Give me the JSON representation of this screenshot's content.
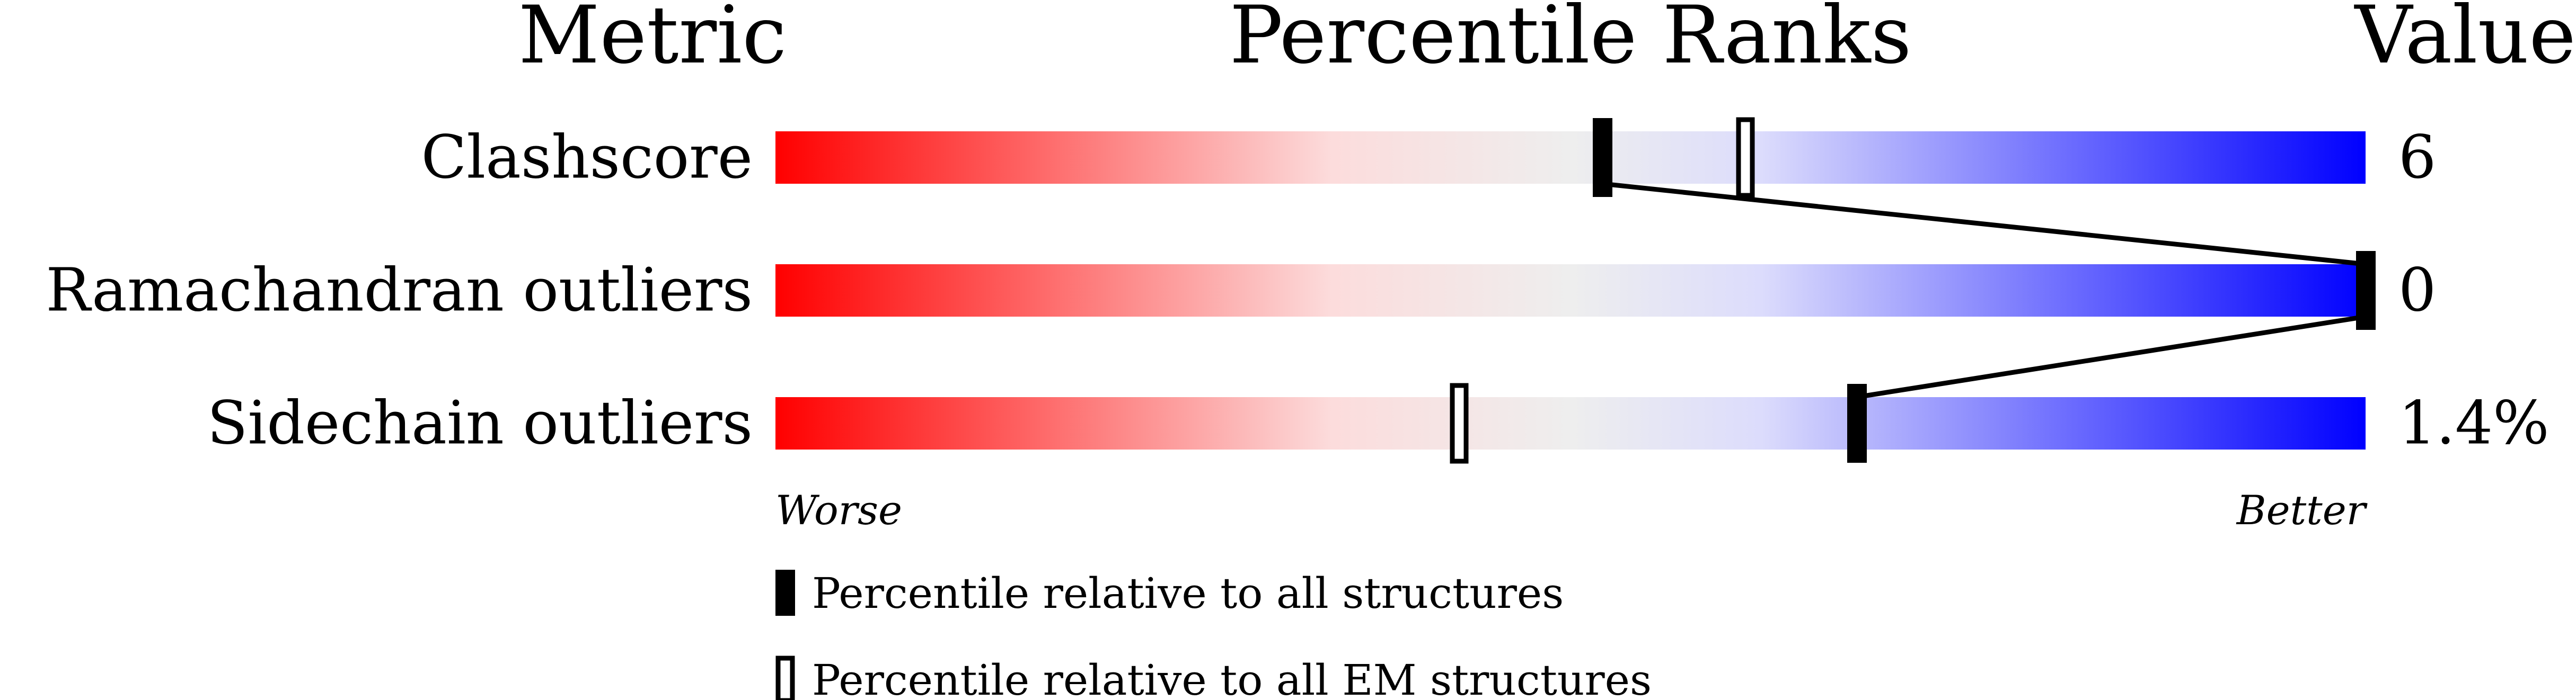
{
  "chart_data": {
    "type": "bar",
    "header": {
      "metric": "Metric",
      "ranks": "Percentile Ranks",
      "value": "Value"
    },
    "xlim": [
      0,
      100
    ],
    "gradient_colors": [
      "#ff0000",
      "#fcdcdc",
      "#eeeeee",
      "#dcdcfc",
      "#0000ff"
    ],
    "rows": [
      {
        "label": "Clashscore",
        "value": "6",
        "percentile_all": 52,
        "percentile_em": 61
      },
      {
        "label": "Ramachandran outliers",
        "value": "0",
        "percentile_all": 100,
        "percentile_em": null
      },
      {
        "label": "Sidechain outliers",
        "value": "1.4%",
        "percentile_all": 68,
        "percentile_em": 43
      }
    ],
    "axis": {
      "worse": "Worse",
      "better": "Better"
    },
    "legend": {
      "all": "Percentile relative to all structures",
      "em": "Percentile relative to all EM structures"
    }
  }
}
